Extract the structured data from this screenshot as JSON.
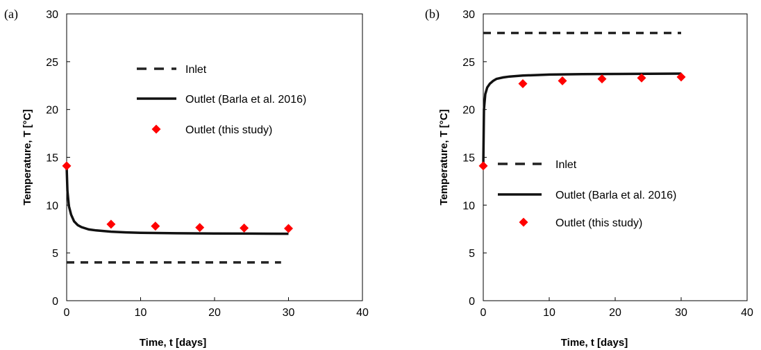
{
  "chart_data": [
    {
      "panel_label": "(a)",
      "type": "line",
      "xlabel": "Time, t [days]",
      "ylabel": "Temperature, T [°C]",
      "xlim": [
        0,
        40
      ],
      "ylim": [
        0,
        30
      ],
      "xticks": [
        "0",
        "10",
        "20",
        "30",
        "40"
      ],
      "yticks": [
        "0",
        "5",
        "10",
        "15",
        "20",
        "25",
        "30"
      ],
      "grid": false,
      "legend_position": "upper-center",
      "series": [
        {
          "name": "Inlet",
          "style": "dashed",
          "color": "#222222",
          "x": [
            0,
            29
          ],
          "y": [
            4.0,
            4.0
          ]
        },
        {
          "name": "Outlet (Barla et al. 2016)",
          "style": "solid",
          "color": "#111111",
          "x": [
            0,
            0.1,
            0.3,
            0.6,
            1,
            1.5,
            2,
            3,
            4,
            6,
            8,
            10,
            15,
            20,
            25,
            30
          ],
          "y": [
            14.0,
            11.5,
            9.9,
            9.0,
            8.3,
            7.9,
            7.7,
            7.45,
            7.35,
            7.22,
            7.15,
            7.1,
            7.05,
            7.03,
            7.02,
            7.0
          ]
        },
        {
          "name": "Outlet (this study)",
          "style": "marker",
          "color": "#ff0000",
          "x": [
            0,
            6,
            12,
            18,
            24,
            30
          ],
          "y": [
            14.1,
            8.0,
            7.8,
            7.65,
            7.6,
            7.55
          ]
        }
      ]
    },
    {
      "panel_label": "(b)",
      "type": "line",
      "xlabel": "Time, t [days]",
      "ylabel": "Temperature, T [°C]",
      "xlim": [
        0,
        40
      ],
      "ylim": [
        0,
        30
      ],
      "xticks": [
        "0",
        "10",
        "20",
        "30",
        "40"
      ],
      "yticks": [
        "0",
        "5",
        "10",
        "15",
        "20",
        "25",
        "30"
      ],
      "grid": false,
      "legend_position": "center",
      "series": [
        {
          "name": "Inlet",
          "style": "dashed",
          "color": "#222222",
          "x": [
            0,
            30
          ],
          "y": [
            28.0,
            28.0
          ]
        },
        {
          "name": "Outlet (Barla et al. 2016)",
          "style": "solid",
          "color": "#111111",
          "x": [
            0,
            0.1,
            0.3,
            0.6,
            1,
            1.5,
            2,
            3,
            4,
            6,
            8,
            10,
            15,
            20,
            25,
            30
          ],
          "y": [
            14.0,
            20.0,
            21.6,
            22.3,
            22.7,
            23.0,
            23.2,
            23.35,
            23.45,
            23.55,
            23.6,
            23.65,
            23.7,
            23.72,
            23.74,
            23.75
          ]
        },
        {
          "name": "Outlet (this study)",
          "style": "marker",
          "color": "#ff0000",
          "x": [
            0,
            6,
            12,
            18,
            24,
            30
          ],
          "y": [
            14.1,
            22.7,
            23.0,
            23.2,
            23.3,
            23.4
          ]
        }
      ]
    }
  ]
}
